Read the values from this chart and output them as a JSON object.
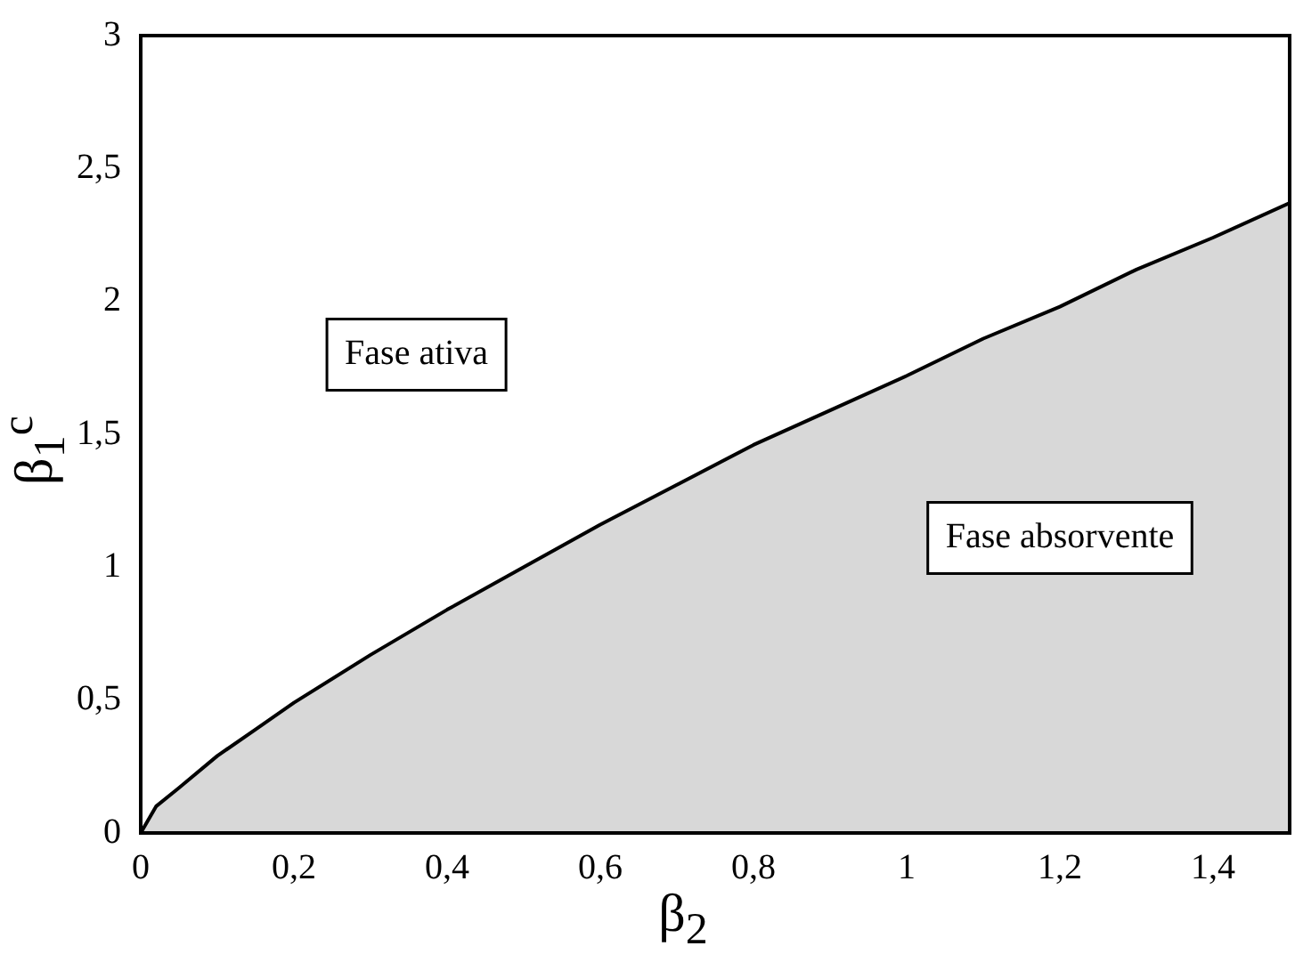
{
  "chart_data": {
    "type": "area",
    "xlabel": "β$_{2}$",
    "ylabel": "β$_{1}$$^{c}$",
    "x": [
      0,
      0.02,
      0.05,
      0.1,
      0.15,
      0.2,
      0.3,
      0.4,
      0.5,
      0.6,
      0.7,
      0.8,
      0.9,
      1.0,
      1.1,
      1.2,
      1.3,
      1.4,
      1.5
    ],
    "series": [
      {
        "color": "#000000",
        "values": [
          0,
          0.1,
          0.17,
          0.29,
          0.39,
          0.49,
          0.67,
          0.84,
          1.0,
          1.16,
          1.31,
          1.46,
          1.59,
          1.72,
          1.86,
          1.98,
          2.12,
          2.24,
          2.37
        ]
      }
    ],
    "xlim": [
      0,
      1.5
    ],
    "ylim": [
      0,
      3
    ],
    "xticks": [
      0,
      {
        "value": 0.2,
        "label": "0,2"
      },
      {
        "value": 0.4,
        "label": "0,4"
      },
      {
        "value": 0.6,
        "label": "0,6"
      },
      {
        "value": 0.8,
        "label": "0,8"
      },
      1,
      {
        "value": 1.2,
        "label": "1,2"
      },
      {
        "value": 1.4,
        "label": "1,4"
      }
    ],
    "yticks": [
      0,
      {
        "value": 0.5,
        "label": "0,5"
      },
      1,
      {
        "value": 1.5,
        "label": "1,5"
      },
      2,
      {
        "value": 2.5,
        "label": "2,5"
      },
      3
    ],
    "annotations": [
      "Fase ativa",
      "Fase absorvente"
    ],
    "grid": false,
    "legend": false
  }
}
